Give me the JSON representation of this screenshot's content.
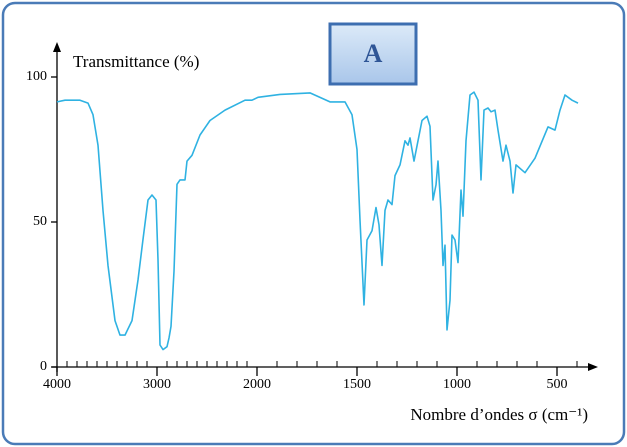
{
  "chart_data": {
    "type": "line",
    "title": "A",
    "y_label": "Transmittance (%)",
    "x_label": "Nombre d’ondes σ (cm⁻¹)",
    "xlim": [
      4000,
      330
    ],
    "ylim": [
      0,
      100
    ],
    "xscale_break": 2000,
    "xticks": [
      4000,
      3000,
      2000,
      1500,
      1000,
      500
    ],
    "xminorticks": [
      3900,
      3800,
      3700,
      3600,
      3500,
      3400,
      3300,
      3200,
      3100,
      2900,
      2800,
      2700,
      2600,
      2500,
      2400,
      2300,
      2200,
      2100,
      1900,
      1800,
      1700,
      1600,
      1400,
      1300,
      1200,
      1100,
      900,
      800,
      700,
      600,
      400
    ],
    "yticks": [
      0,
      50,
      100
    ],
    "series": [
      {
        "color": "#2fb2e2",
        "x": [
          4000,
          3920,
          3770,
          3690,
          3640,
          3590,
          3540,
          3490,
          3420,
          3370,
          3320,
          3250,
          3190,
          3140,
          3090,
          3050,
          3010,
          2990,
          2970,
          2940,
          2900,
          2880,
          2860,
          2830,
          2800,
          2770,
          2720,
          2700,
          2650,
          2570,
          2470,
          2320,
          2120,
          2050,
          1995,
          1885,
          1735,
          1635,
          1560,
          1525,
          1500,
          1485,
          1465,
          1450,
          1425,
          1405,
          1390,
          1375,
          1360,
          1345,
          1325,
          1310,
          1285,
          1260,
          1245,
          1235,
          1215,
          1195,
          1175,
          1150,
          1135,
          1120,
          1105,
          1095,
          1080,
          1070,
          1060,
          1050,
          1035,
          1025,
          1010,
          995,
          980,
          970,
          955,
          935,
          915,
          895,
          880,
          865,
          845,
          830,
          810,
          795,
          770,
          755,
          735,
          720,
          705,
          660,
          610,
          545,
          510,
          485,
          460,
          425,
          395
        ],
        "values": [
          91.4,
          92,
          92,
          91,
          87,
          76.5,
          54,
          35,
          16,
          11,
          11,
          16,
          30,
          44,
          57.6,
          59.3,
          57.6,
          37,
          7.6,
          6,
          7,
          10,
          14,
          33,
          63,
          64.5,
          64.5,
          71,
          73,
          80,
          85,
          88.6,
          92,
          92,
          93,
          94,
          94.5,
          91.4,
          91.4,
          87,
          75,
          50.7,
          21.4,
          43.8,
          47,
          55,
          49,
          35,
          54,
          57.6,
          56,
          66,
          69.7,
          78,
          76.5,
          79,
          71,
          78,
          85,
          86.5,
          83,
          57.6,
          62.8,
          71,
          54,
          35,
          42,
          12.8,
          23,
          45.5,
          43.8,
          36,
          61,
          52,
          78,
          93.8,
          94.8,
          92,
          64.5,
          88.6,
          89.3,
          88,
          88.6,
          81.7,
          71,
          76.5,
          71,
          60,
          69.7,
          67,
          72,
          82.8,
          81.7,
          88.6,
          93.8,
          92,
          91
        ]
      }
    ]
  }
}
